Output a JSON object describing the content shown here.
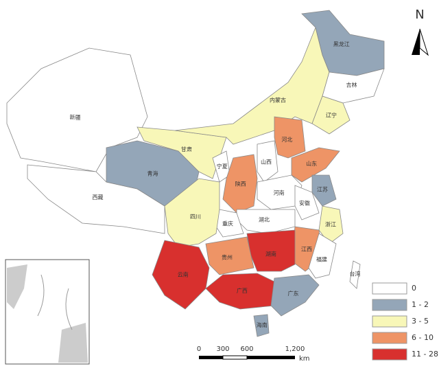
{
  "north": "N",
  "legend": {
    "items": [
      {
        "label": "0",
        "color": "#ffffff"
      },
      {
        "label": "1 - 2",
        "color": "#94a6b8"
      },
      {
        "label": "3 - 5",
        "color": "#f8f7b8"
      },
      {
        "label": "6 - 10",
        "color": "#ee9466"
      },
      {
        "label": "11 - 28",
        "color": "#d8302e"
      }
    ]
  },
  "regions": [
    {
      "label": "新疆",
      "class": 0
    },
    {
      "label": "西藏",
      "class": 0
    },
    {
      "label": "青海",
      "class": 1
    },
    {
      "label": "甘肃",
      "class": 2
    },
    {
      "label": "内蒙古",
      "class": 2
    },
    {
      "label": "黑龙江",
      "class": 1
    },
    {
      "label": "吉林",
      "class": 0
    },
    {
      "label": "辽宁",
      "class": 2
    },
    {
      "label": "宁夏",
      "class": 0
    },
    {
      "label": "陕西",
      "class": 3
    },
    {
      "label": "山西",
      "class": 0
    },
    {
      "label": "河北",
      "class": 3
    },
    {
      "label": "山东",
      "class": 3
    },
    {
      "label": "河南",
      "class": 0
    },
    {
      "label": "江苏",
      "class": 1
    },
    {
      "label": "安徽",
      "class": 0
    },
    {
      "label": "湖北",
      "class": 0
    },
    {
      "label": "重庆",
      "class": 0
    },
    {
      "label": "四川",
      "class": 2
    },
    {
      "label": "浙江",
      "class": 2
    },
    {
      "label": "江西",
      "class": 3
    },
    {
      "label": "湖南",
      "class": 4
    },
    {
      "label": "贵州",
      "class": 3
    },
    {
      "label": "云南",
      "class": 4
    },
    {
      "label": "广西",
      "class": 4
    },
    {
      "label": "广东",
      "class": 1
    },
    {
      "label": "福建",
      "class": 0
    },
    {
      "label": "海南",
      "class": 1
    },
    {
      "label": "台湾",
      "class": 0
    }
  ],
  "scale_bar": {
    "ticks": [
      "0",
      "300",
      "600",
      "1,200"
    ],
    "unit": "km"
  }
}
